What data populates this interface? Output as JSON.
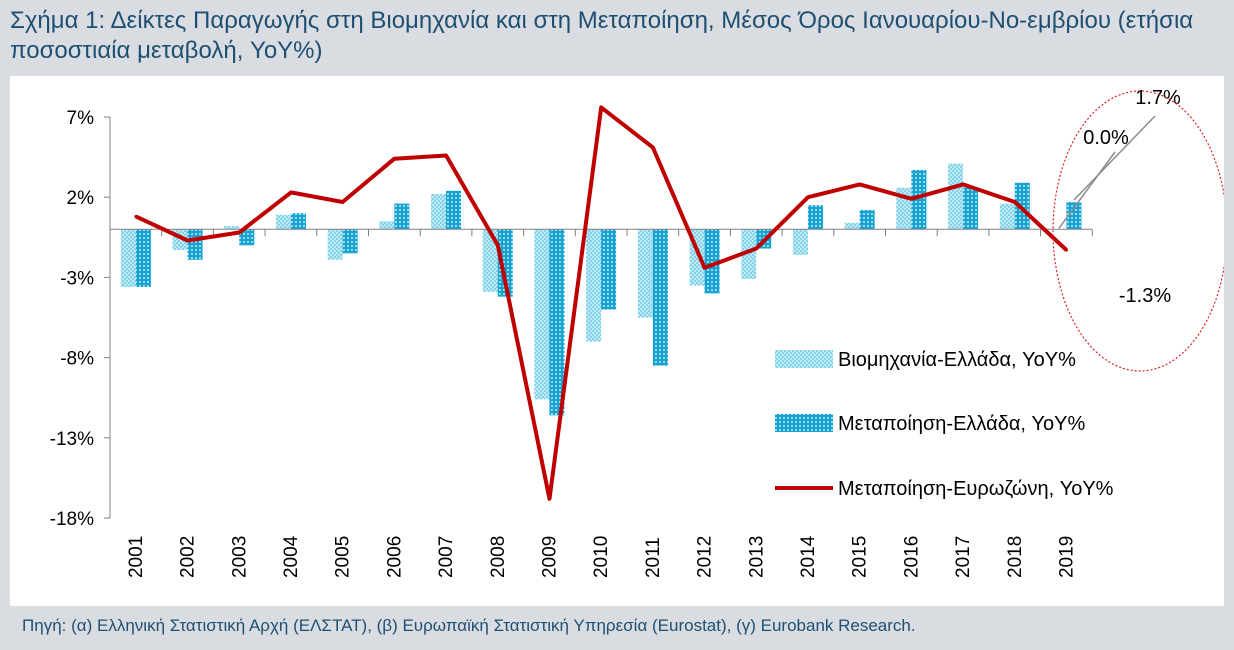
{
  "title": "Σχήμα 1: Δείκτες Παραγωγής στη Βιομηχανία και στη Μεταποίηση, Μέσος Όρος Ιανουαρίου-Νο-εμβρίου (ετήσια ποσοστιαία μεταβολή, YoY%)",
  "source": "Πηγή: (α) Ελληνική Στατιστική Αρχή (ΕΛΣΤΑΤ), (β) Ευρωπαϊκή Στατιστική Υπηρεσία (Eurostat), (γ) Eurobank Research.",
  "chart_data": {
    "type": "bar",
    "categories": [
      "2001",
      "2002",
      "2003",
      "2004",
      "2005",
      "2006",
      "2007",
      "2008",
      "2009",
      "2010",
      "2011",
      "2012",
      "2013",
      "2014",
      "2015",
      "2016",
      "2017",
      "2018",
      "2019"
    ],
    "ylim": [
      -18,
      7
    ],
    "yticks": [
      7,
      2,
      -3,
      -8,
      -13,
      -18
    ],
    "ytick_labels": [
      "7%",
      "2%",
      "-3%",
      "-8%",
      "-13%",
      "-18%"
    ],
    "series": [
      {
        "name": "Βιομηχανία-Ελλάδα, YoY%",
        "kind": "bar",
        "pattern": "light-dots",
        "color": "#7fd3ea",
        "values": [
          -3.6,
          -1.3,
          0.2,
          0.9,
          -1.9,
          0.5,
          2.2,
          -3.9,
          -10.6,
          -7.0,
          -5.5,
          -3.5,
          -3.1,
          -1.6,
          0.4,
          2.6,
          4.1,
          1.6,
          0.0
        ]
      },
      {
        "name": "Μεταποίηση-Ελλάδα, YoY%",
        "kind": "bar",
        "pattern": "dense-dots",
        "color": "#1aa7d6",
        "values": [
          -3.6,
          -1.9,
          -1.0,
          1.0,
          -1.5,
          1.6,
          2.4,
          -4.2,
          -11.6,
          -5.0,
          -8.5,
          -4.0,
          -1.2,
          1.5,
          1.2,
          3.7,
          2.6,
          2.9,
          1.7
        ]
      },
      {
        "name": "Μεταποίηση-Ευρωζώνη, YoY%",
        "kind": "line",
        "color": "#c00000",
        "values": [
          0.8,
          -0.7,
          -0.2,
          2.3,
          1.7,
          4.4,
          4.6,
          -1.0,
          -16.8,
          7.6,
          5.1,
          -2.4,
          -1.2,
          2.0,
          2.8,
          1.9,
          2.8,
          1.7,
          -1.3
        ]
      }
    ],
    "annotations": [
      "1.7%",
      "0.0%",
      "-1.3%"
    ],
    "legend_position": "center-right",
    "grid": false
  }
}
